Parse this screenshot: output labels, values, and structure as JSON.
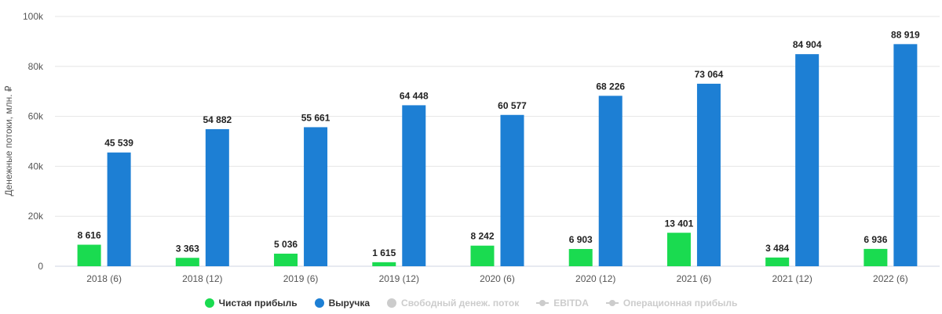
{
  "chart_data": {
    "type": "bar",
    "ylabel": "Денежные потоки, млн. ₽",
    "ylim": [
      0,
      100000
    ],
    "yticks": [
      "0",
      "20k",
      "40k",
      "60k",
      "80k",
      "100k"
    ],
    "ytick_values": [
      0,
      20000,
      40000,
      60000,
      80000,
      100000
    ],
    "grid": true,
    "legend_position": "bottom",
    "categories": [
      "2018 (6)",
      "2018 (12)",
      "2019 (6)",
      "2019 (12)",
      "2020 (6)",
      "2020 (12)",
      "2021 (6)",
      "2021 (12)",
      "2022 (6)"
    ],
    "series": [
      {
        "name": "Чистая прибыль",
        "color": "#1adb50",
        "values": [
          8616,
          3363,
          5036,
          1615,
          8242,
          6903,
          13401,
          3484,
          6936
        ],
        "labels": [
          "8 616",
          "3 363",
          "5 036",
          "1 615",
          "8 242",
          "6 903",
          "13 401",
          "3 484",
          "6 936"
        ]
      },
      {
        "name": "Выручка",
        "color": "#1d7fd4",
        "values": [
          45539,
          54882,
          55661,
          64448,
          60577,
          68226,
          73064,
          84904,
          88919
        ],
        "labels": [
          "45 539",
          "54 882",
          "55 661",
          "64 448",
          "60 577",
          "68 226",
          "73 064",
          "84 904",
          "88 919"
        ]
      }
    ],
    "hidden_series": [
      {
        "name": "Свободный денеж. поток",
        "marker": "circle",
        "color": "#cccccc"
      },
      {
        "name": "EBITDA",
        "marker": "line",
        "color": "#cccccc"
      },
      {
        "name": "Операционная прибыль",
        "marker": "line",
        "color": "#cccccc"
      }
    ]
  },
  "legend": {
    "items": [
      {
        "label": "Чистая прибыль",
        "color": "#1adb50",
        "marker": "circle-icon"
      },
      {
        "label": "Выручка",
        "color": "#1d7fd4",
        "marker": "circle-icon"
      },
      {
        "label": "Свободный денеж. поток",
        "color": "#cccccc",
        "marker": "circle-icon"
      },
      {
        "label": "EBITDA",
        "color": "#cccccc",
        "marker": "line-marker-icon"
      },
      {
        "label": "Операционная прибыль",
        "color": "#cccccc",
        "marker": "line-marker-icon"
      }
    ]
  }
}
